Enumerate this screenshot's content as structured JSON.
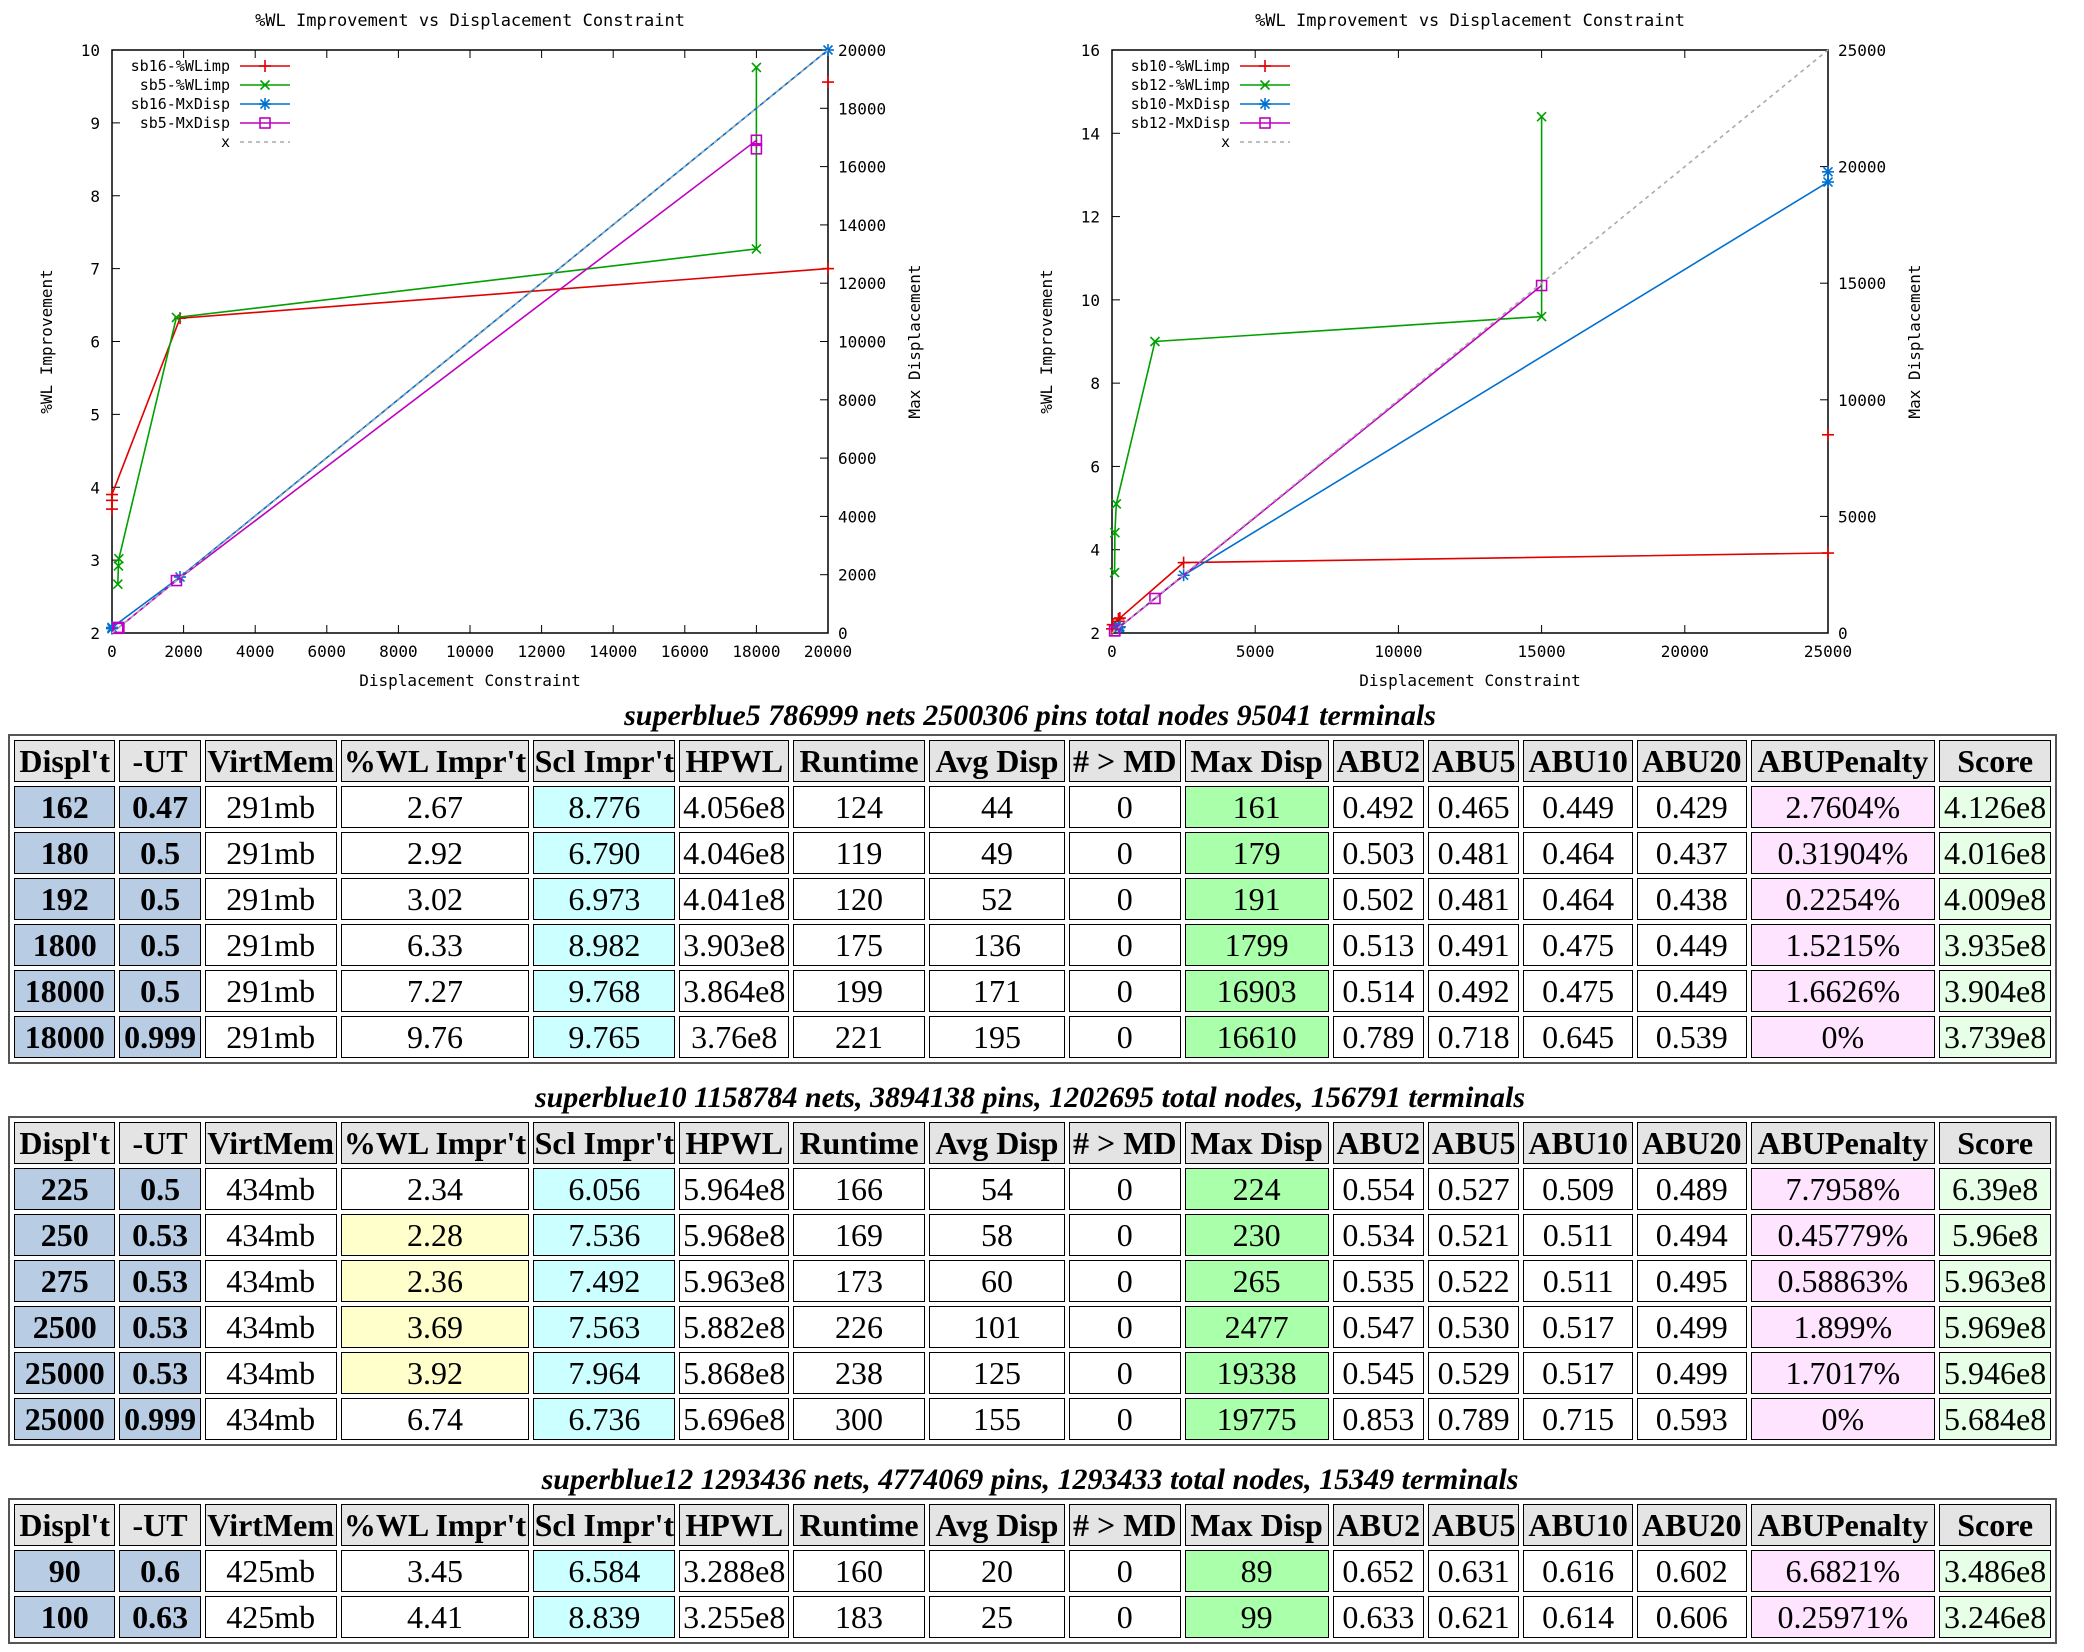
{
  "chart_data": [
    {
      "type": "line",
      "title": "%WL Improvement vs Displacement Constraint",
      "xlabel": "Displacement Constraint",
      "ylabel": "%WL Improvement",
      "y2label": "Max Displacement",
      "xlim": [
        0,
        20000
      ],
      "ylim": [
        2,
        10
      ],
      "y2lim": [
        0,
        20000
      ],
      "xticks": [
        "0",
        "2000",
        "4000",
        "6000",
        "8000",
        "10000",
        "12000",
        "14000",
        "16000",
        "18000",
        "20000"
      ],
      "yticks": [
        "2",
        "3",
        "4",
        "5",
        "6",
        "7",
        "8",
        "9",
        "10"
      ],
      "y2ticks": [
        "0",
        "2000",
        "4000",
        "6000",
        "8000",
        "10000",
        "12000",
        "14000",
        "16000",
        "18000",
        "20000"
      ],
      "legend_position": "top-left",
      "series": [
        {
          "name": "sb16-%WLimp",
          "axis": "y",
          "marker": "plus",
          "color": "#e00000",
          "x": [
            0,
            0,
            0,
            1900,
            20000
          ],
          "y": [
            3.82,
            3.7,
            3.9,
            6.32,
            7.0
          ]
        },
        {
          "name": "sb5-%WLimp",
          "axis": "y",
          "marker": "cross",
          "color": "#00a000",
          "x": [
            162,
            180,
            192,
            1800,
            18000,
            18000
          ],
          "y": [
            2.67,
            2.92,
            3.02,
            6.33,
            7.27,
            9.76
          ]
        },
        {
          "name": "sb16-MxDisp",
          "axis": "y2",
          "marker": "star",
          "color": "#0070d0",
          "x": [
            0,
            0,
            1900,
            20000
          ],
          "y": [
            150,
            190,
            1920,
            20000
          ]
        },
        {
          "name": "sb5-MxDisp",
          "axis": "y2",
          "marker": "square",
          "color": "#c000c0",
          "x": [
            162,
            180,
            192,
            1800,
            18000,
            18000
          ],
          "y": [
            161,
            179,
            191,
            1799,
            16903,
            16610
          ]
        },
        {
          "name": "x",
          "axis": "y2",
          "marker": "none",
          "color": "#aaaaaa",
          "dashed": true,
          "x": [
            0,
            20000
          ],
          "y": [
            0,
            20000
          ]
        }
      ],
      "annotations": [
        {
          "marker": "plus",
          "color": "#e00000",
          "x": 20000,
          "y2": 18900
        }
      ]
    },
    {
      "type": "line",
      "title": "%WL Improvement vs Displacement Constraint",
      "xlabel": "Displacement Constraint",
      "ylabel": "%WL Improvement",
      "y2label": "Max Displacement",
      "xlim": [
        0,
        25000
      ],
      "ylim": [
        2,
        16
      ],
      "y2lim": [
        0,
        25000
      ],
      "xticks": [
        "0",
        "5000",
        "10000",
        "15000",
        "20000",
        "25000"
      ],
      "yticks": [
        "2",
        "4",
        "6",
        "8",
        "10",
        "12",
        "14",
        "16"
      ],
      "y2ticks": [
        "0",
        "5000",
        "10000",
        "15000",
        "20000",
        "25000"
      ],
      "legend_position": "top-left",
      "series": [
        {
          "name": "sb10-%WLimp",
          "axis": "y",
          "marker": "plus",
          "color": "#e00000",
          "x": [
            0,
            25,
            225,
            250,
            275,
            2500,
            25000
          ],
          "y": [
            2.1,
            2.2,
            2.34,
            2.28,
            2.36,
            3.69,
            3.92
          ]
        },
        {
          "name": "sb12-%WLimp",
          "axis": "y",
          "marker": "cross",
          "color": "#00a000",
          "x": [
            90,
            100,
            150,
            1500,
            15000,
            15000
          ],
          "y": [
            3.45,
            4.41,
            5.1,
            9.0,
            9.6,
            14.4
          ]
        },
        {
          "name": "sb10-MxDisp",
          "axis": "y2",
          "marker": "star",
          "color": "#0070d0",
          "x": [
            225,
            250,
            275,
            2500,
            25000,
            25000
          ],
          "y": [
            224,
            230,
            265,
            2477,
            19338,
            19775
          ]
        },
        {
          "name": "sb12-MxDisp",
          "axis": "y2",
          "marker": "square",
          "color": "#c000c0",
          "x": [
            90,
            100,
            1500,
            15000
          ],
          "y": [
            89,
            99,
            1480,
            14900
          ]
        },
        {
          "name": "x",
          "axis": "y2",
          "marker": "none",
          "color": "#aaaaaa",
          "dashed": true,
          "x": [
            0,
            25000
          ],
          "y": [
            0,
            25000
          ]
        }
      ],
      "annotations": [
        {
          "marker": "plus",
          "color": "#e00000",
          "x": 25000,
          "y2": 8500
        }
      ]
    },
    {
      "type": "table",
      "title": "superblue5 786999 nets 2500306 pins total nodes 95041 terminals",
      "columns": [
        "Displ't",
        "-UT",
        "VirtMem",
        "%WL Impr't",
        "Scl Impr't",
        "HPWL",
        "Runtime",
        "Avg Disp",
        "# > MD",
        "Max Disp",
        "ABU2",
        "ABU5",
        "ABU10",
        "ABU20",
        "ABUPenalty",
        "Score"
      ],
      "rows": [
        [
          "162",
          "0.47",
          "291mb",
          "2.67",
          "8.776",
          "4.056e8",
          "124",
          "44",
          "0",
          "161",
          "0.492",
          "0.465",
          "0.449",
          "0.429",
          "2.7604%",
          "4.126e8"
        ],
        [
          "180",
          "0.5",
          "291mb",
          "2.92",
          "6.790",
          "4.046e8",
          "119",
          "49",
          "0",
          "179",
          "0.503",
          "0.481",
          "0.464",
          "0.437",
          "0.31904%",
          "4.016e8"
        ],
        [
          "192",
          "0.5",
          "291mb",
          "3.02",
          "6.973",
          "4.041e8",
          "120",
          "52",
          "0",
          "191",
          "0.502",
          "0.481",
          "0.464",
          "0.438",
          "0.2254%",
          "4.009e8"
        ],
        [
          "1800",
          "0.5",
          "291mb",
          "6.33",
          "8.982",
          "3.903e8",
          "175",
          "136",
          "0",
          "1799",
          "0.513",
          "0.491",
          "0.475",
          "0.449",
          "1.5215%",
          "3.935e8"
        ],
        [
          "18000",
          "0.5",
          "291mb",
          "7.27",
          "9.768",
          "3.864e8",
          "199",
          "171",
          "0",
          "16903",
          "0.514",
          "0.492",
          "0.475",
          "0.449",
          "1.6626%",
          "3.904e8"
        ],
        [
          "18000",
          "0.999",
          "291mb",
          "9.76",
          "9.765",
          "3.76e8",
          "221",
          "195",
          "0",
          "16610",
          "0.789",
          "0.718",
          "0.645",
          "0.539",
          "0%",
          "3.739e8"
        ]
      ],
      "highlight_wl": []
    },
    {
      "type": "table",
      "title": "superblue10 1158784 nets, 3894138 pins, 1202695 total nodes, 156791 terminals",
      "columns": [
        "Displ't",
        "-UT",
        "VirtMem",
        "%WL Impr't",
        "Scl Impr't",
        "HPWL",
        "Runtime",
        "Avg Disp",
        "# > MD",
        "Max Disp",
        "ABU2",
        "ABU5",
        "ABU10",
        "ABU20",
        "ABUPenalty",
        "Score"
      ],
      "rows": [
        [
          "225",
          "0.5",
          "434mb",
          "2.34",
          "6.056",
          "5.964e8",
          "166",
          "54",
          "0",
          "224",
          "0.554",
          "0.527",
          "0.509",
          "0.489",
          "7.7958%",
          "6.39e8"
        ],
        [
          "250",
          "0.53",
          "434mb",
          "2.28",
          "7.536",
          "5.968e8",
          "169",
          "58",
          "0",
          "230",
          "0.534",
          "0.521",
          "0.511",
          "0.494",
          "0.45779%",
          "5.96e8"
        ],
        [
          "275",
          "0.53",
          "434mb",
          "2.36",
          "7.492",
          "5.963e8",
          "173",
          "60",
          "0",
          "265",
          "0.535",
          "0.522",
          "0.511",
          "0.495",
          "0.58863%",
          "5.963e8"
        ],
        [
          "2500",
          "0.53",
          "434mb",
          "3.69",
          "7.563",
          "5.882e8",
          "226",
          "101",
          "0",
          "2477",
          "0.547",
          "0.530",
          "0.517",
          "0.499",
          "1.899%",
          "5.969e8"
        ],
        [
          "25000",
          "0.53",
          "434mb",
          "3.92",
          "7.964",
          "5.868e8",
          "238",
          "125",
          "0",
          "19338",
          "0.545",
          "0.529",
          "0.517",
          "0.499",
          "1.7017%",
          "5.946e8"
        ],
        [
          "25000",
          "0.999",
          "434mb",
          "6.74",
          "6.736",
          "5.696e8",
          "300",
          "155",
          "0",
          "19775",
          "0.853",
          "0.789",
          "0.715",
          "0.593",
          "0%",
          "5.684e8"
        ]
      ],
      "highlight_wl": [
        1,
        2,
        3,
        4
      ]
    },
    {
      "type": "table",
      "title": "superblue12 1293436 nets, 4774069 pins, 1293433 total nodes, 15349 terminals",
      "columns": [
        "Displ't",
        "-UT",
        "VirtMem",
        "%WL Impr't",
        "Scl Impr't",
        "HPWL",
        "Runtime",
        "Avg Disp",
        "# > MD",
        "Max Disp",
        "ABU2",
        "ABU5",
        "ABU10",
        "ABU20",
        "ABUPenalty",
        "Score"
      ],
      "rows": [
        [
          "90",
          "0.6",
          "425mb",
          "3.45",
          "6.584",
          "3.288e8",
          "160",
          "20",
          "0",
          "89",
          "0.652",
          "0.631",
          "0.616",
          "0.602",
          "6.6821%",
          "3.486e8"
        ],
        [
          "100",
          "0.63",
          "425mb",
          "4.41",
          "8.839",
          "3.255e8",
          "183",
          "25",
          "0",
          "99",
          "0.633",
          "0.621",
          "0.614",
          "0.606",
          "0.25971%",
          "3.246e8"
        ]
      ],
      "highlight_wl": []
    }
  ]
}
